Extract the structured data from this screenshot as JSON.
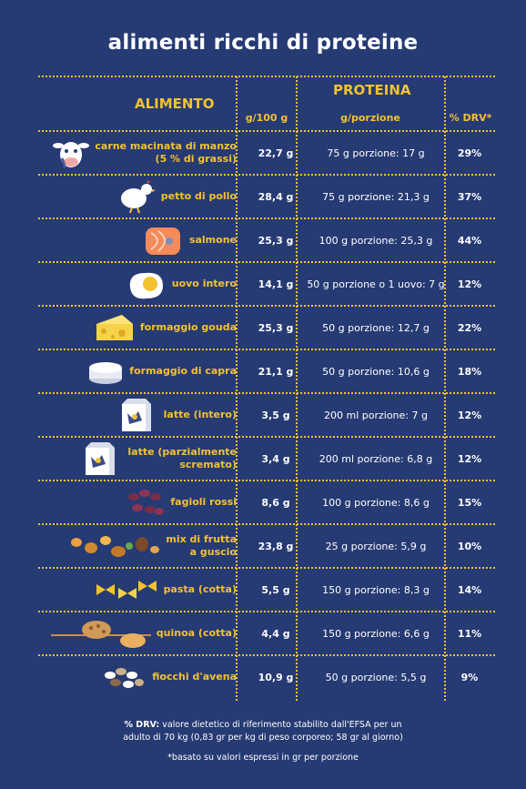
{
  "title": "alimenti ricchi di proteine",
  "headers": {
    "alimento": "ALIMENTO",
    "proteina": "PROTEINA",
    "per100": "g/100 g",
    "porzione": "g/porzione",
    "drv": "% DRV*"
  },
  "rows": [
    {
      "name": "carne macinata di manzo\n(5 % di grassi)",
      "g100": "22,7 g",
      "porzione": "75 g porzione: 17 g",
      "drv": "29%",
      "icon": "cow-icon"
    },
    {
      "name": "petto di pollo",
      "g100": "28,4 g",
      "porzione": "75 g porzione: 21,3 g",
      "drv": "37%",
      "icon": "chicken-icon"
    },
    {
      "name": "salmone",
      "g100": "25,3 g",
      "porzione": "100 g porzione: 25,3 g",
      "drv": "44%",
      "icon": "salmon-icon"
    },
    {
      "name": "uovo intero",
      "g100": "14,1 g",
      "porzione": "50 g porzione o 1 uovo: 7 g",
      "drv": "12%",
      "icon": "egg-icon"
    },
    {
      "name": "formaggio gouda",
      "g100": "25,3 g",
      "porzione": "50 g porzione: 12,7 g",
      "drv": "22%",
      "icon": "cheese-icon"
    },
    {
      "name": "formaggio di capra",
      "g100": "21,1 g",
      "porzione": "50 g porzione: 10,6 g",
      "drv": "18%",
      "icon": "goat-cheese-icon"
    },
    {
      "name": "latte (intero)",
      "g100": "3,5 g",
      "porzione": "200 ml porzione: 7 g",
      "drv": "12%",
      "icon": "milk-carton-icon"
    },
    {
      "name": "latte (parzialmente\nscremato)",
      "g100": "3,4 g",
      "porzione": "200 ml porzione: 6,8 g",
      "drv": "12%",
      "icon": "milk-carton-icon"
    },
    {
      "name": "fagioli rossi",
      "g100": "8,6 g",
      "porzione": "100 g porzione: 8,6 g",
      "drv": "15%",
      "icon": "beans-icon"
    },
    {
      "name": "mix di frutta\na guscio",
      "g100": "23,8 g",
      "porzione": "25 g porzione: 5,9 g",
      "drv": "10%",
      "icon": "nuts-icon"
    },
    {
      "name": "pasta (cotta)",
      "g100": "5,5 g",
      "porzione": "150 g porzione: 8,3 g",
      "drv": "14%",
      "icon": "pasta-icon"
    },
    {
      "name": "quinoa (cotta)",
      "g100": "4,4 g",
      "porzione": "150 g porzione: 6,6 g",
      "drv": "11%",
      "icon": "quinoa-icon"
    },
    {
      "name": "fiocchi d'avena",
      "g100": "10,9 g",
      "porzione": "50 g porzione: 5,5 g",
      "drv": "9%",
      "icon": "oats-icon"
    }
  ],
  "footer": {
    "drv_label": "% DRV:",
    "drv_text": " valore dietetico di riferimento stabilito dall'EFSA per un",
    "drv_text2": "adulto di 70 kg (0,83 gr per kg di peso corporeo; 58 gr al giorno)",
    "note": "*basato su valori espressi in gr per porzione"
  },
  "colors": {
    "background": "#263a73",
    "accent": "#f2c230",
    "text": "#ffffff"
  }
}
